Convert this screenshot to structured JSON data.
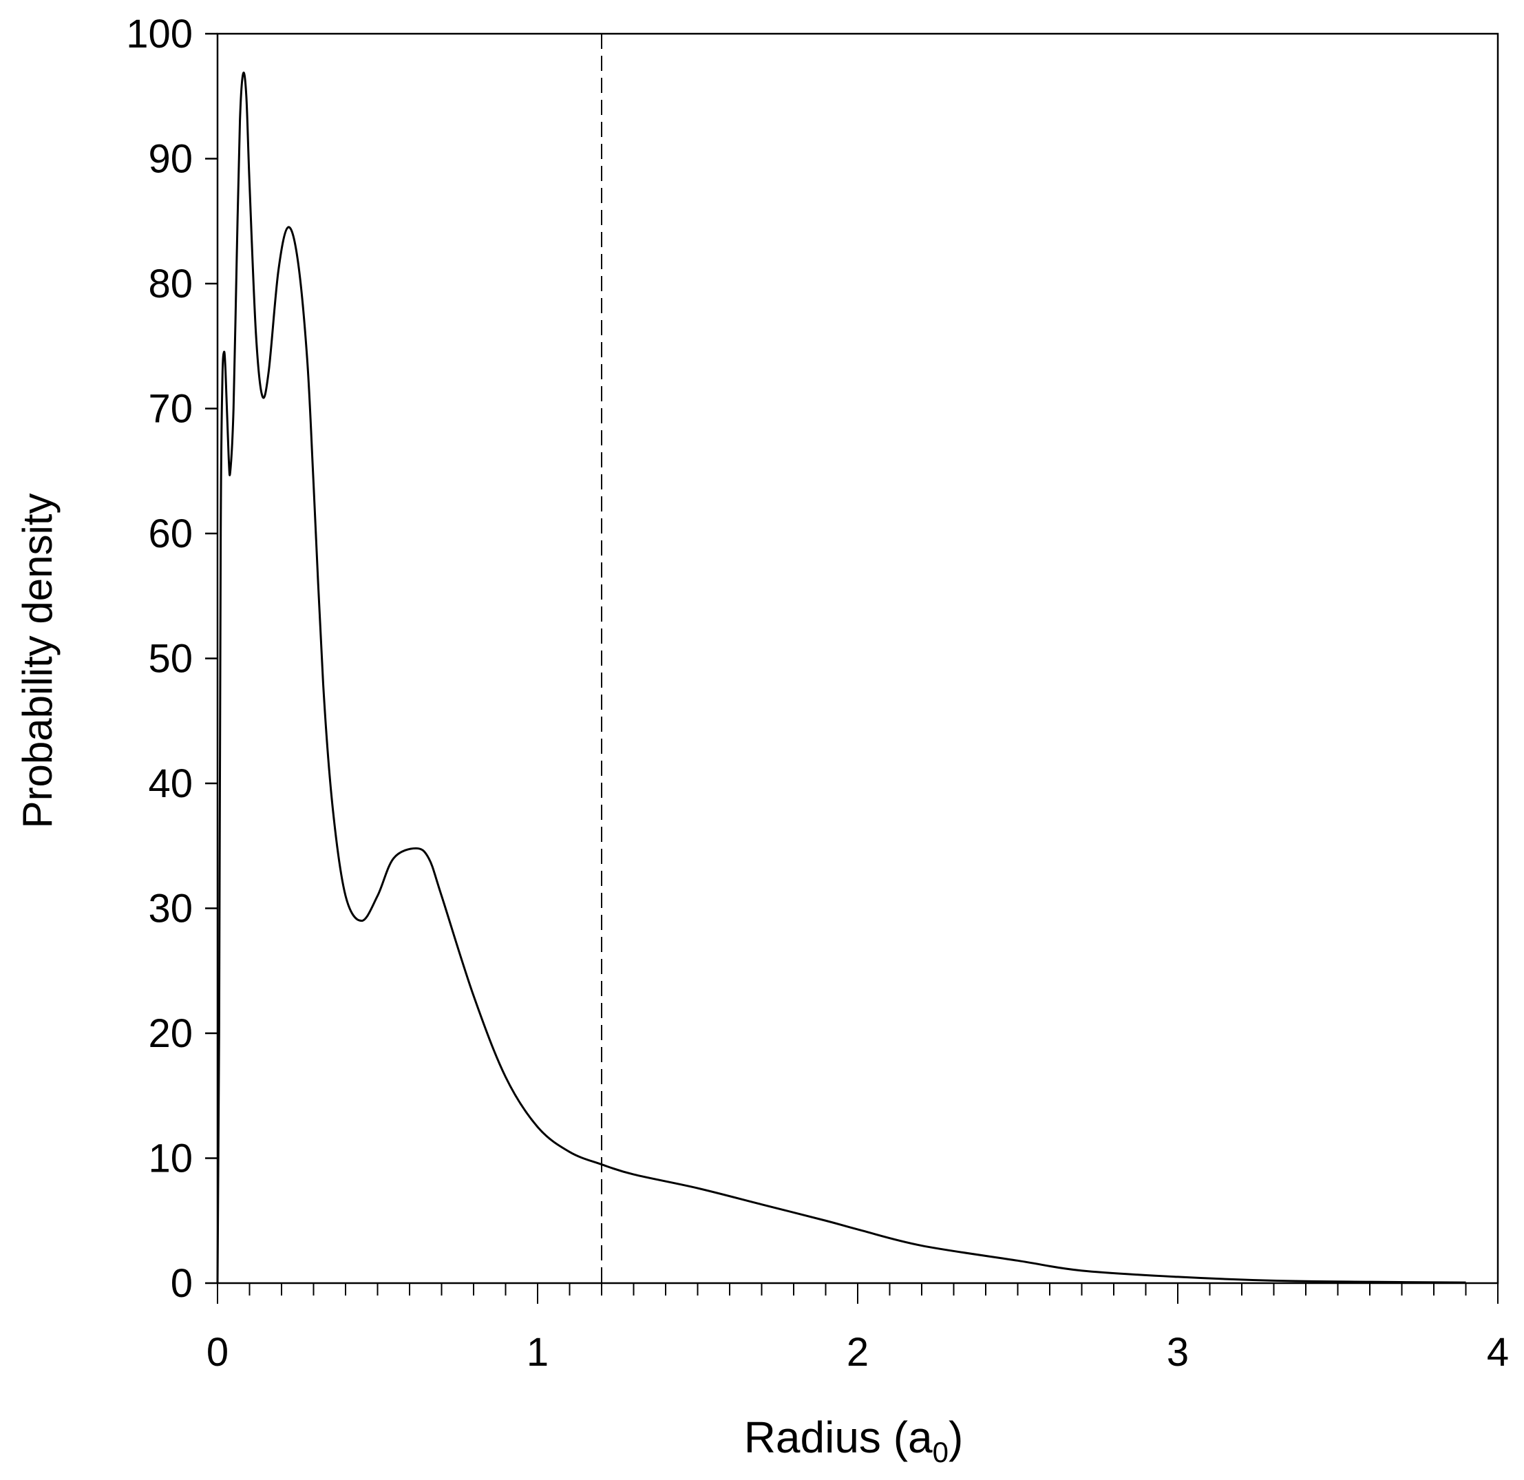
{
  "chart_data": {
    "type": "line",
    "title": "",
    "xlabel": "Radius (a",
    "xlabel_subscript": "0",
    "xlabel_close": ")",
    "ylabel": "Probability density",
    "xlim": [
      0,
      4
    ],
    "ylim": [
      0,
      100
    ],
    "x_ticks": [
      "0",
      "1",
      "2",
      "3",
      "4"
    ],
    "x_minor_step": 0.1,
    "y_ticks": [
      "0",
      "10",
      "20",
      "30",
      "40",
      "50",
      "60",
      "70",
      "80",
      "90",
      "100"
    ],
    "grid": false,
    "legend": "none",
    "line_color": "#000000",
    "reference_line": {
      "x": 1.2,
      "style": "dashed"
    },
    "series": [
      {
        "x": [
          0,
          0.005,
          0.01,
          0.015,
          0.02,
          0.025,
          0.035,
          0.04,
          0.05,
          0.06,
          0.07,
          0.08,
          0.09,
          0.1,
          0.12,
          0.14,
          0.16,
          0.19,
          0.22,
          0.25,
          0.28,
          0.3,
          0.33,
          0.36,
          0.4,
          0.45,
          0.5,
          0.55,
          0.62,
          0.66,
          0.7,
          0.8,
          0.9,
          1.0,
          1.1,
          1.2,
          1.3,
          1.5,
          1.7,
          1.9,
          2.0,
          2.2,
          2.5,
          2.7,
          3.0,
          3.3,
          3.6,
          3.9
        ],
        "y": [
          0,
          20,
          60,
          72,
          74.5,
          73,
          66,
          65,
          70,
          82,
          93,
          96.8,
          95,
          88,
          76,
          71,
          73,
          81,
          84.5,
          82,
          74,
          64,
          48,
          38,
          31,
          29,
          31,
          34,
          34.8,
          34,
          31,
          23,
          16.5,
          12.5,
          10.5,
          9.5,
          8.7,
          7.6,
          6.3,
          5.0,
          4.3,
          3.0,
          1.8,
          1.0,
          0.5,
          0.2,
          0.1,
          0.05
        ]
      }
    ]
  }
}
